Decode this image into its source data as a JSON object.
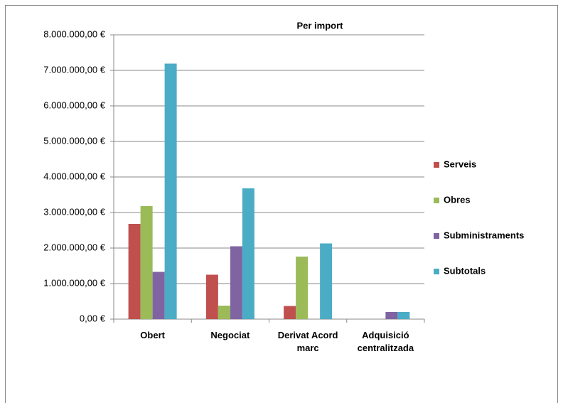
{
  "chart_data": {
    "type": "bar",
    "title": "Per import",
    "categories": [
      "Obert",
      "Negociat",
      "Derivat Acord marc",
      "Adquisició centralitzada"
    ],
    "series": [
      {
        "name": "Serveis",
        "color": "#c0504d",
        "values": [
          2680000,
          1250000,
          370000,
          0
        ]
      },
      {
        "name": "Obres",
        "color": "#9bbb59",
        "values": [
          3180000,
          380000,
          1760000,
          0
        ]
      },
      {
        "name": "Subministraments",
        "color": "#8064a2",
        "values": [
          1330000,
          2050000,
          0,
          200000
        ]
      },
      {
        "name": "Subtotals",
        "color": "#4bacc6",
        "values": [
          7190000,
          3680000,
          2130000,
          200000
        ]
      }
    ],
    "ylim": [
      0,
      8000000
    ],
    "yticks": [
      {
        "value": 0,
        "label": "0,00 €"
      },
      {
        "value": 1000000,
        "label": "1.000.000,00 €"
      },
      {
        "value": 2000000,
        "label": "2.000.000,00 €"
      },
      {
        "value": 3000000,
        "label": "3.000.000,00 €"
      },
      {
        "value": 4000000,
        "label": "4.000.000,00 €"
      },
      {
        "value": 5000000,
        "label": "5.000.000,00 €"
      },
      {
        "value": 6000000,
        "label": "6.000.000,00 €"
      },
      {
        "value": 7000000,
        "label": "7.000.000,00 €"
      },
      {
        "value": 8000000,
        "label": "8.000.000,00 €"
      }
    ],
    "grid": true,
    "legend": "right"
  }
}
